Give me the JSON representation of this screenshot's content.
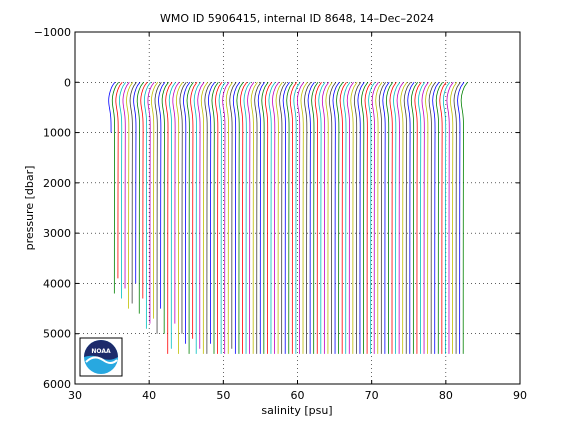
{
  "chart_data": {
    "type": "line",
    "title": "WMO ID 5906415, internal ID 8648, 14–Dec–2024",
    "xlabel": "salinity [psu]",
    "ylabel": "pressure [dbar]",
    "xlim": [
      30,
      90
    ],
    "ylim": [
      -1000,
      6000
    ],
    "y_reversed": true,
    "grid": true,
    "x_ticks": [
      30,
      40,
      50,
      60,
      70,
      80,
      90
    ],
    "y_ticks": [
      -1000,
      0,
      1000,
      2000,
      3000,
      4000,
      5000,
      6000
    ],
    "series_description": "Waterfall of salinity profiles, each successive profile offset by about 0.48 psu from a base near 34.9 psu; bottom pressure of each profile listed below",
    "profile_count": 100,
    "profile_offset_step": 0.48,
    "base_salinity": 34.9,
    "profile_max_pressure": [
      1000,
      4200,
      3900,
      4300,
      4100,
      4500,
      4400,
      4000,
      4600,
      4300,
      4900,
      4800,
      4700,
      5000,
      4500,
      5000,
      5400,
      5300,
      4800,
      5400,
      5000,
      5200,
      5400,
      5100,
      5400,
      5300,
      5400,
      5400,
      5200,
      5400,
      5400,
      5400,
      5400,
      5400,
      5300,
      5400,
      5400,
      5400,
      5400,
      5400,
      5400,
      5400,
      5400,
      5400,
      5400,
      5400,
      5400,
      5400,
      5400,
      5400,
      5400,
      5400,
      5400,
      5400,
      5400,
      5400,
      5400,
      5400,
      5400,
      5400,
      5400,
      5400,
      5400,
      5400,
      5400,
      5400,
      5400,
      5400,
      5400,
      5400,
      5400,
      5400,
      5400,
      5400,
      5400,
      5400,
      5400,
      5400,
      5400,
      5400,
      5400,
      5400,
      5400,
      5400,
      5400,
      5400,
      5400,
      5400,
      5400,
      5400,
      5400,
      5400,
      5400,
      5400,
      5400,
      5400,
      5400,
      5400,
      5400,
      5400
    ],
    "line_colors": [
      "#0000ff",
      "#008000",
      "#ff0000",
      "#00bfbf",
      "#bf00bf",
      "#bfbf00",
      "#404040"
    ]
  },
  "logo": {
    "text": "NOAA",
    "colors": {
      "outer": "#ffffff",
      "navy": "#1d2b6b",
      "sky": "#28a8e0"
    }
  }
}
